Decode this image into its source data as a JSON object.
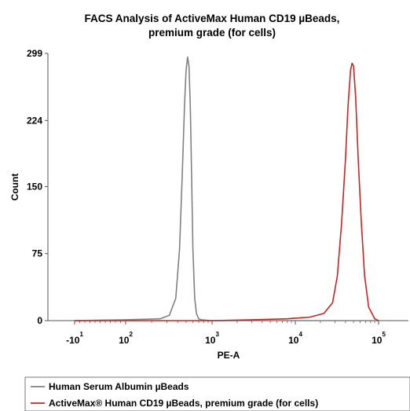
{
  "chart_data": {
    "type": "line",
    "title_lines": [
      "FACS Analysis of ActiveMax Human CD19 µBeads,",
      "premium grade (for cells)"
    ],
    "xlabel": "PE-A",
    "ylabel": "Count",
    "x_scale": "biexponential",
    "x_ticks": [
      {
        "value": -10,
        "base": "-10",
        "exp": "1"
      },
      {
        "value": 100,
        "base": "10",
        "exp": "2"
      },
      {
        "value": 1000,
        "base": "10",
        "exp": "3"
      },
      {
        "value": 10000,
        "base": "10",
        "exp": "4"
      },
      {
        "value": 100000,
        "base": "10",
        "exp": "5"
      }
    ],
    "y_ticks": [
      0,
      75,
      150,
      224,
      299
    ],
    "ylim": [
      0,
      299
    ],
    "legend_position": "bottom",
    "series": [
      {
        "name": "Human Serum Albumin µBeads",
        "color": "#808080",
        "x": [
          -10,
          100,
          250,
          320,
          380,
          420,
          450,
          480,
          500,
          520,
          540,
          560,
          580,
          600,
          630,
          660,
          700,
          750,
          1000,
          10000,
          100000
        ],
        "y": [
          0,
          1,
          2,
          6,
          25,
          80,
          160,
          240,
          280,
          295,
          285,
          240,
          160,
          80,
          25,
          8,
          2,
          1,
          0,
          0,
          0
        ]
      },
      {
        "name": "ActiveMax® Human CD19 µBeads, premium grade (for cells)",
        "color": "#cc2222",
        "x": [
          -10,
          1000,
          3000,
          8000,
          15000,
          22000,
          28000,
          32000,
          36000,
          40000,
          43000,
          46000,
          48000,
          50000,
          53000,
          57000,
          62000,
          68000,
          76000,
          90000,
          100000
        ],
        "y": [
          0,
          0,
          1,
          2,
          4,
          8,
          20,
          50,
          110,
          180,
          240,
          280,
          288,
          285,
          250,
          180,
          110,
          50,
          15,
          2,
          0
        ]
      }
    ]
  }
}
